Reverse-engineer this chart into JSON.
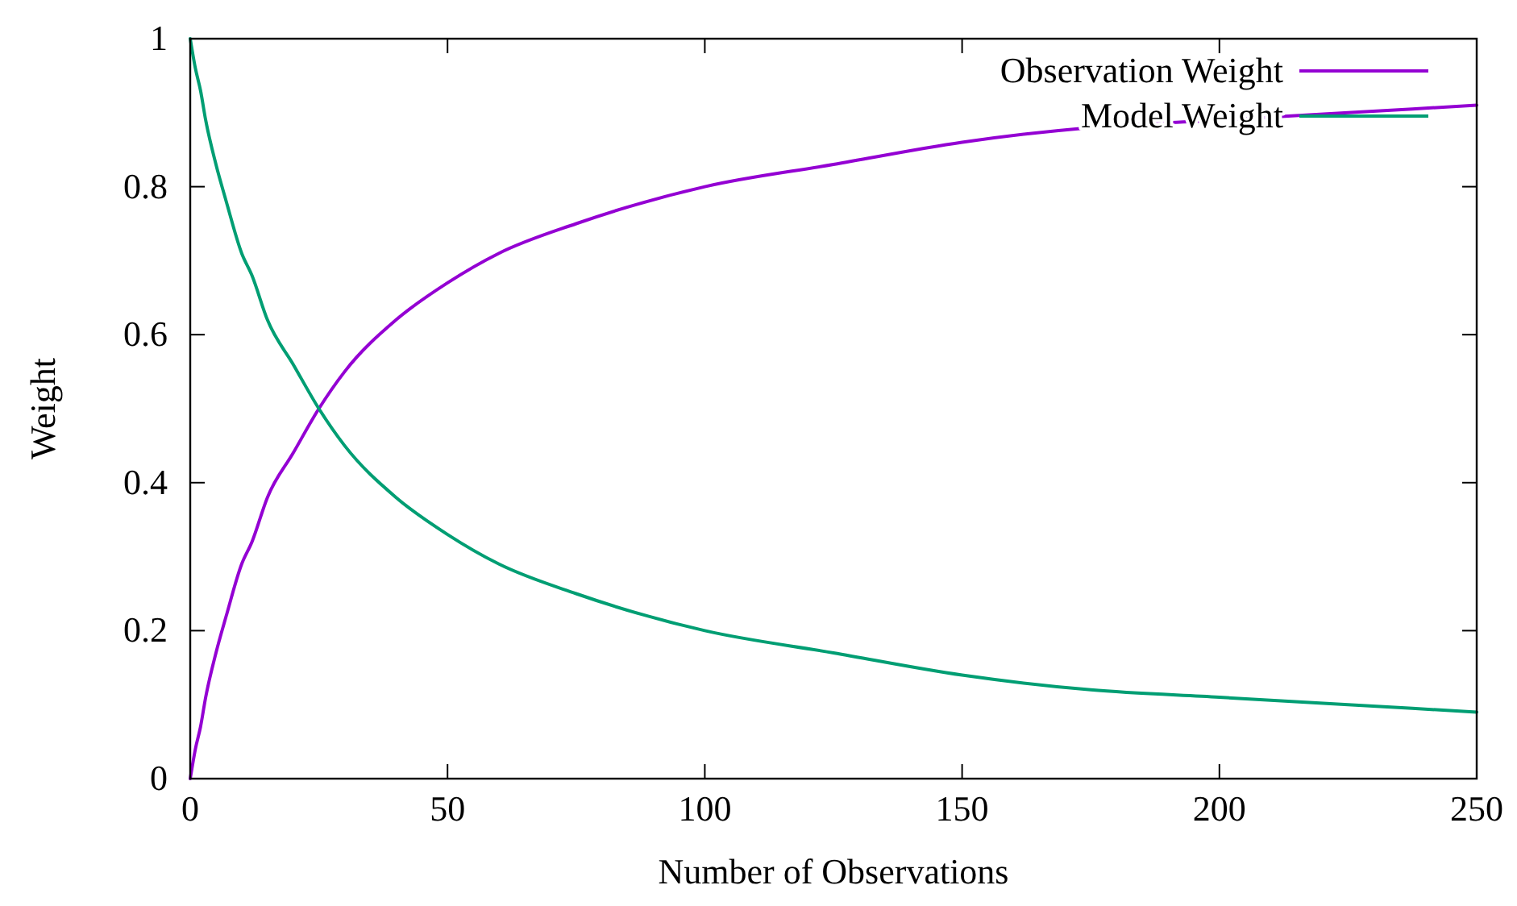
{
  "chart_data": {
    "type": "line",
    "xlabel": "Number of Observations",
    "ylabel": "Weight",
    "x": [
      0,
      1,
      2,
      3,
      5,
      7,
      10,
      12,
      15,
      20,
      25,
      30,
      40,
      50,
      60,
      75,
      100,
      125,
      150,
      175,
      200,
      225,
      250
    ],
    "series": [
      {
        "name": "Observation Weight",
        "color": "#9400d3",
        "values": [
          0,
          0.04,
          0.07,
          0.11,
          0.17,
          0.22,
          0.29,
          0.32,
          0.38,
          0.44,
          0.5,
          0.55,
          0.62,
          0.67,
          0.71,
          0.75,
          0.8,
          0.83,
          0.86,
          0.88,
          0.89,
          0.9,
          0.91
        ]
      },
      {
        "name": "Model Weight",
        "color": "#009e73",
        "values": [
          1,
          0.96,
          0.93,
          0.89,
          0.83,
          0.78,
          0.71,
          0.68,
          0.62,
          0.56,
          0.5,
          0.45,
          0.38,
          0.33,
          0.29,
          0.25,
          0.2,
          0.17,
          0.14,
          0.12,
          0.11,
          0.1,
          0.09
        ]
      }
    ],
    "xlim": [
      0,
      250
    ],
    "xticks": [
      0,
      50,
      100,
      150,
      200,
      250
    ],
    "ylim": [
      0,
      1
    ],
    "yticks": [
      0,
      0.2,
      0.4,
      0.6,
      0.8,
      1
    ],
    "grid": false,
    "legend": "top right",
    "marker": "none",
    "line_style": "solid"
  }
}
